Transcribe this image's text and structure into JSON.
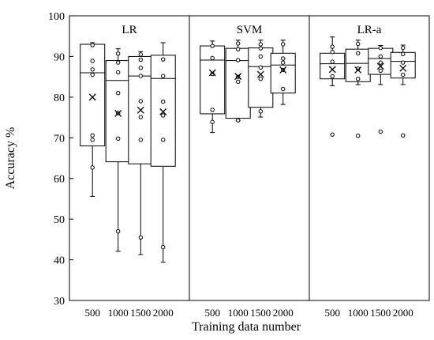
{
  "chart_data": {
    "type": "box",
    "ylabel": "Accuracy  %",
    "xlabel": "Training data number",
    "ylim": [
      30,
      100
    ],
    "yticks": [
      30,
      40,
      50,
      60,
      70,
      80,
      90,
      100
    ],
    "categories": [
      "500",
      "1000",
      "1500",
      "2000"
    ],
    "grid": false,
    "mean_marker": "x",
    "points_marker": "open-circle",
    "panels": [
      {
        "title": "LR",
        "boxes": [
          {
            "category": "500",
            "whisker_low": 55.6,
            "q1": 68.0,
            "median": 86.0,
            "q3": 93.0,
            "whisker_high": 93.4,
            "mean": 80.0,
            "points": [
              62.7,
              69.5,
              70.6,
              85.5,
              86.8,
              88.9,
              92.8
            ]
          },
          {
            "category": "1000",
            "whisker_low": 42.1,
            "q1": 64.1,
            "median": 84.1,
            "q3": 89.0,
            "whisker_high": 91.9,
            "mean": 76.0,
            "points": [
              47.0,
              69.8,
              76.1,
              81.0,
              86.1,
              88.5,
              90.7
            ]
          },
          {
            "category": "1500",
            "whisker_low": 41.3,
            "q1": 63.6,
            "median": 85.2,
            "q3": 90.0,
            "whisker_high": 91.2,
            "mean": 76.8,
            "points": [
              45.5,
              69.5,
              75.1,
              79.0,
              85.2,
              87.2,
              89.2,
              90.5
            ]
          },
          {
            "category": "2000",
            "whisker_low": 39.4,
            "q1": 63.0,
            "median": 84.6,
            "q3": 90.3,
            "whisker_high": 93.4,
            "mean": 76.4,
            "points": [
              43.1,
              69.5,
              75.5,
              78.9,
              85.2,
              89.3
            ]
          }
        ]
      },
      {
        "title": "SVM",
        "boxes": [
          {
            "category": "500",
            "whisker_low": 71.3,
            "q1": 75.9,
            "median": 89.1,
            "q3": 92.6,
            "whisker_high": 93.8,
            "mean": 86.0,
            "points": [
              73.9,
              76.9,
              85.7,
              89.6,
              92.6
            ]
          },
          {
            "category": "1000",
            "whisker_low": 74.2,
            "q1": 74.8,
            "median": 89.0,
            "q3": 92.0,
            "whisker_high": 94.0,
            "mean": 85.1,
            "points": [
              74.3,
              83.8,
              85.0,
              89.1,
              91.8,
              93.2
            ]
          },
          {
            "category": "1500",
            "whisker_low": 75.1,
            "q1": 77.5,
            "median": 87.5,
            "q3": 92.1,
            "whisker_high": 94.0,
            "mean": 85.6,
            "points": [
              76.5,
              84.5,
              87.3,
              90.0,
              92.0,
              93.0
            ]
          },
          {
            "category": "2000",
            "whisker_low": 78.2,
            "q1": 81.0,
            "median": 87.9,
            "q3": 90.8,
            "whisker_high": 94.0,
            "mean": 86.7,
            "points": [
              82.0,
              86.7,
              88.5,
              89.5,
              93.0
            ]
          }
        ]
      },
      {
        "title": "LR-a",
        "boxes": [
          {
            "category": "500",
            "whisker_low": 82.8,
            "q1": 84.5,
            "median": 88.2,
            "q3": 90.8,
            "whisker_high": 94.8,
            "mean": 86.8,
            "points": [
              70.8,
              85.1,
              88.7,
              91.1,
              92.4
            ]
          },
          {
            "category": "1000",
            "whisker_low": 83.1,
            "q1": 83.8,
            "median": 88.3,
            "q3": 91.8,
            "whisker_high": 94.0,
            "mean": 86.7,
            "points": [
              70.5,
              84.5,
              87.0,
              90.8,
              93.1
            ]
          },
          {
            "category": "1500",
            "whisker_low": 83.1,
            "q1": 85.6,
            "median": 89.5,
            "q3": 92.0,
            "whisker_high": 92.7,
            "mean": 87.6,
            "points": [
              71.5,
              86.5,
              88.5,
              90.0,
              92.1
            ]
          },
          {
            "category": "2000",
            "whisker_low": 83.1,
            "q1": 84.7,
            "median": 88.8,
            "q3": 91.0,
            "whisker_high": 92.8,
            "mean": 87.1,
            "points": [
              70.6,
              85.5,
              88.5,
              90.6,
              92.1
            ]
          }
        ]
      }
    ]
  }
}
